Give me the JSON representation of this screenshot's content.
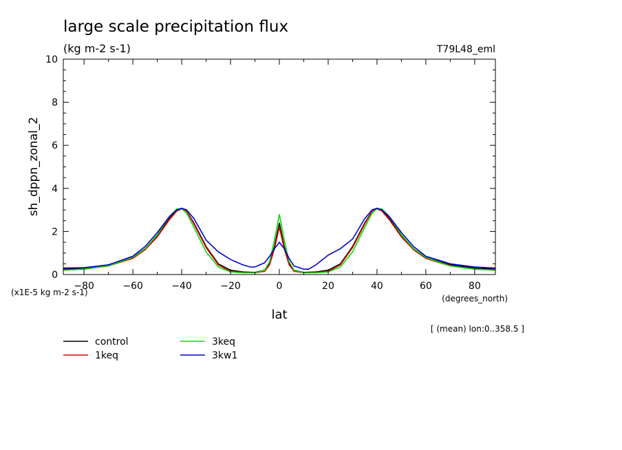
{
  "chart_data": {
    "type": "line",
    "title": "large scale precipitation flux",
    "subtitle": "(kg m-2 s-1)",
    "experiment": "T79L48_eml",
    "xlabel": "lat",
    "xunits": "(degrees_north)",
    "ylabel": "sh_dppn_zonal_2",
    "yscale_note": "(x1E-5 kg m-2 s-1)",
    "note": "[ (mean) lon:0..358.5 ]",
    "xlim": [
      -88.5,
      88.5
    ],
    "ylim": [
      0,
      10
    ],
    "xticks": [
      -80,
      -60,
      -40,
      -20,
      0,
      20,
      40,
      60,
      80
    ],
    "yticks": [
      0,
      2,
      4,
      6,
      8,
      10
    ],
    "grid": false,
    "legend_position": "bottom-left",
    "series": [
      {
        "name": "control",
        "color": "#000000",
        "x": [
          -88.5,
          -80,
          -70,
          -60,
          -55,
          -50,
          -45,
          -42,
          -40,
          -38,
          -35,
          -30,
          -25,
          -20,
          -15,
          -10,
          -6,
          -4,
          -2,
          0,
          2,
          4,
          6,
          10,
          15,
          20,
          25,
          30,
          35,
          38,
          40,
          42,
          45,
          50,
          55,
          60,
          70,
          80,
          88.5
        ],
        "y": [
          0.25,
          0.3,
          0.45,
          0.8,
          1.2,
          1.8,
          2.6,
          3.0,
          3.05,
          2.95,
          2.4,
          1.3,
          0.5,
          0.2,
          0.12,
          0.1,
          0.2,
          0.5,
          1.3,
          2.4,
          1.3,
          0.5,
          0.2,
          0.1,
          0.12,
          0.2,
          0.5,
          1.3,
          2.4,
          2.95,
          3.05,
          3.0,
          2.6,
          1.8,
          1.2,
          0.8,
          0.45,
          0.3,
          0.25
        ]
      },
      {
        "name": "1keq",
        "color": "#e00000",
        "x": [
          -88.5,
          -80,
          -70,
          -60,
          -55,
          -50,
          -45,
          -42,
          -40,
          -38,
          -35,
          -30,
          -25,
          -20,
          -15,
          -10,
          -6,
          -4,
          -2,
          0,
          2,
          4,
          6,
          10,
          15,
          20,
          25,
          30,
          35,
          38,
          40,
          42,
          45,
          50,
          55,
          60,
          70,
          80,
          88.5
        ],
        "y": [
          0.2,
          0.25,
          0.4,
          0.75,
          1.15,
          1.75,
          2.55,
          2.95,
          3.05,
          2.95,
          2.35,
          1.25,
          0.45,
          0.15,
          0.1,
          0.08,
          0.15,
          0.45,
          1.2,
          2.2,
          1.2,
          0.45,
          0.15,
          0.08,
          0.1,
          0.15,
          0.45,
          1.25,
          2.35,
          2.95,
          3.05,
          2.95,
          2.55,
          1.75,
          1.15,
          0.75,
          0.4,
          0.25,
          0.2
        ]
      },
      {
        "name": "3keq",
        "color": "#00dd00",
        "x": [
          -88.5,
          -80,
          -70,
          -60,
          -55,
          -50,
          -45,
          -42,
          -40,
          -38,
          -35,
          -30,
          -25,
          -20,
          -15,
          -10,
          -6,
          -4,
          -2,
          0,
          2,
          4,
          6,
          10,
          15,
          20,
          25,
          30,
          35,
          38,
          40,
          42,
          45,
          50,
          55,
          60,
          70,
          80,
          88.5
        ],
        "y": [
          0.2,
          0.25,
          0.4,
          0.8,
          1.2,
          1.85,
          2.7,
          3.05,
          3.05,
          2.85,
          2.2,
          1.05,
          0.35,
          0.12,
          0.08,
          0.08,
          0.2,
          0.6,
          1.6,
          2.8,
          1.6,
          0.6,
          0.2,
          0.08,
          0.08,
          0.12,
          0.35,
          1.05,
          2.2,
          2.85,
          3.05,
          3.05,
          2.7,
          1.85,
          1.2,
          0.8,
          0.4,
          0.25,
          0.2
        ]
      },
      {
        "name": "3kw1",
        "color": "#0000cc",
        "x": [
          -88.5,
          -80,
          -70,
          -60,
          -55,
          -50,
          -45,
          -42,
          -40,
          -38,
          -35,
          -30,
          -25,
          -20,
          -15,
          -12,
          -10,
          -6,
          -4,
          -2,
          0,
          2,
          4,
          6,
          10,
          12,
          15,
          20,
          25,
          30,
          35,
          38,
          40,
          42,
          45,
          50,
          55,
          60,
          70,
          80,
          88.5
        ],
        "y": [
          0.3,
          0.32,
          0.45,
          0.85,
          1.3,
          1.95,
          2.7,
          3.0,
          3.08,
          3.0,
          2.6,
          1.6,
          1.05,
          0.7,
          0.45,
          0.35,
          0.35,
          0.55,
          0.85,
          1.2,
          1.5,
          1.2,
          0.75,
          0.4,
          0.25,
          0.25,
          0.45,
          0.9,
          1.2,
          1.65,
          2.6,
          3.0,
          3.08,
          3.0,
          2.7,
          1.95,
          1.3,
          0.85,
          0.5,
          0.35,
          0.3
        ]
      }
    ]
  }
}
